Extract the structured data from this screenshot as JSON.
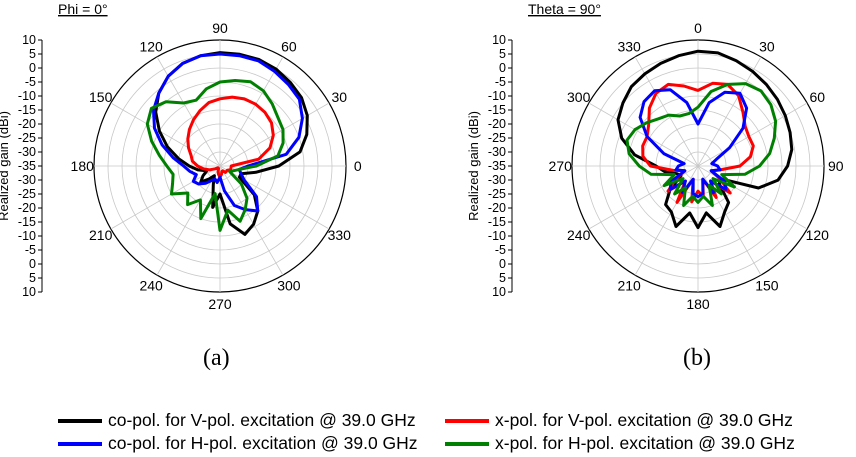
{
  "chart_data": [
    {
      "type": "polar",
      "panel_label": "Phi = 0°",
      "caption": "(a)",
      "ylabel": "Realized gain (dBi)",
      "rlim": [
        -35,
        10
      ],
      "radial_ticks": [
        10,
        5,
        0,
        -5,
        -10,
        -15,
        -20,
        -25,
        -30,
        -35
      ],
      "axis_labels": [
        "10",
        "5",
        "0",
        "-5",
        "-10",
        "-15",
        "-20",
        "-25",
        "-30",
        "-35",
        "-30",
        "-25",
        "-20",
        "-15",
        "-10",
        "-5",
        "0",
        "5",
        "10"
      ],
      "angle_ticks": [
        "0",
        "30",
        "60",
        "90",
        "120",
        "150",
        "180",
        "210",
        "240",
        "270",
        "300",
        "330"
      ],
      "angle_direction": "ccw",
      "zero_at": "right",
      "grid": true,
      "series": [
        {
          "key": "co_v",
          "name": "co-pol. for V-pol. excitation @ 39.0 GHz",
          "color": "#000000",
          "theta": [
            0,
            10,
            20,
            30,
            40,
            50,
            60,
            70,
            80,
            90,
            100,
            110,
            120,
            130,
            140,
            150,
            160,
            170,
            180,
            190,
            200,
            210,
            220,
            230,
            240,
            250,
            260,
            270,
            280,
            290,
            300,
            310,
            320,
            330,
            340,
            350
          ],
          "r": [
            -14,
            -6,
            -2,
            1,
            3,
            4,
            5,
            5.5,
            5.5,
            5.5,
            5,
            4,
            2,
            -1,
            -5,
            -10,
            -15,
            -20,
            -24,
            -27,
            -30,
            -28,
            -26,
            -29,
            -31,
            -28,
            -20,
            -25,
            -14,
            -9,
            -11,
            -14,
            -19,
            -27,
            -27,
            -22
          ]
        },
        {
          "key": "cross_v",
          "name": "x-pol. for V-pol. excitation @ 39.0 GHz",
          "color": "#ff0000",
          "theta": [
            0,
            10,
            20,
            30,
            40,
            50,
            60,
            70,
            80,
            90,
            100,
            110,
            120,
            130,
            140,
            150,
            160,
            170,
            180,
            190,
            200,
            210,
            220,
            230,
            240,
            250,
            260,
            270,
            280,
            290,
            300,
            310,
            320,
            330,
            340,
            350
          ],
          "r": [
            -31,
            -21,
            -16,
            -13,
            -11,
            -10,
            -9.5,
            -9.5,
            -10,
            -11,
            -12,
            -14,
            -16,
            -18,
            -20,
            -22,
            -24,
            -25,
            -27,
            -29,
            -31,
            -33,
            -34,
            -34,
            -34,
            -33,
            -32,
            -31,
            -32,
            -33,
            -33,
            -32,
            -32,
            -32,
            -31,
            -31
          ]
        },
        {
          "key": "co_h",
          "name": "co-pol. for H-pol. excitation @ 39.0 GHz",
          "color": "#0000ff",
          "theta": [
            0,
            10,
            20,
            30,
            40,
            50,
            60,
            70,
            80,
            90,
            100,
            110,
            120,
            130,
            140,
            150,
            160,
            170,
            180,
            190,
            200,
            210,
            220,
            230,
            240,
            250,
            260,
            270,
            280,
            290,
            300,
            310,
            320,
            330,
            340,
            350
          ],
          "r": [
            -25,
            -11,
            -5,
            -1,
            2,
            3,
            4,
            5,
            5,
            5,
            5,
            4,
            2,
            -1,
            -4,
            -8,
            -13,
            -18,
            -22,
            -24,
            -26,
            -24,
            -25,
            -27,
            -29,
            -30,
            -29,
            -31,
            -26,
            -20,
            -17,
            -14,
            -18,
            -25,
            -27,
            -28
          ]
        },
        {
          "key": "cross_h",
          "name": "x-pol. for H-pol. excitation @ 39.0 GHz",
          "color": "#008000",
          "theta": [
            0,
            10,
            20,
            30,
            40,
            50,
            60,
            70,
            80,
            90,
            100,
            110,
            120,
            130,
            140,
            150,
            160,
            170,
            180,
            190,
            200,
            210,
            220,
            230,
            240,
            250,
            260,
            270,
            280,
            290,
            300,
            310,
            320,
            330,
            340,
            350
          ],
          "r": [
            -22,
            -14,
            -11,
            -9,
            -8,
            -6,
            -4,
            -3,
            -4,
            -5,
            -7,
            -10,
            -9,
            -5,
            -3,
            -5,
            -9,
            -13,
            -16,
            -18,
            -17,
            -15,
            -20,
            -17,
            -21,
            -15,
            -25,
            -12,
            -19,
            -14,
            -17,
            -20,
            -25,
            -31,
            -30,
            -28
          ]
        }
      ]
    },
    {
      "type": "polar",
      "panel_label": "Theta = 90°",
      "caption": "(b)",
      "ylabel": "Realized gain (dBi)",
      "rlim": [
        -35,
        10
      ],
      "radial_ticks": [
        10,
        5,
        0,
        -5,
        -10,
        -15,
        -20,
        -25,
        -30,
        -35
      ],
      "axis_labels": [
        "10",
        "5",
        "0",
        "-5",
        "-10",
        "-15",
        "-20",
        "-25",
        "-30",
        "-35",
        "-30",
        "-25",
        "-20",
        "-15",
        "-10",
        "-5",
        "0",
        "5",
        "10"
      ],
      "angle_ticks": [
        "0",
        "30",
        "60",
        "90",
        "120",
        "150",
        "180",
        "210",
        "240",
        "270",
        "300",
        "330"
      ],
      "angle_direction": "cw",
      "zero_at": "top",
      "grid": true,
      "series": [
        {
          "key": "co_v",
          "name": "co-pol. for V-pol. excitation @ 39.0 GHz",
          "color": "#000000",
          "theta": [
            0,
            10,
            20,
            30,
            40,
            50,
            60,
            70,
            80,
            90,
            100,
            110,
            120,
            130,
            140,
            150,
            160,
            170,
            180,
            190,
            200,
            210,
            220,
            230,
            240,
            250,
            260,
            270,
            280,
            290,
            300,
            310,
            320,
            330,
            340,
            350
          ],
          "r": [
            6,
            6,
            5,
            4,
            3,
            2,
            1,
            0,
            -1,
            -3,
            -6,
            -12,
            -26,
            -25,
            -18,
            -16,
            -12,
            -18,
            -13,
            -18,
            -12,
            -16,
            -17,
            -22,
            -28,
            -27,
            -23,
            -20,
            -12,
            -6,
            -2,
            0,
            2,
            3,
            4,
            5
          ]
        },
        {
          "key": "cross_v",
          "name": "x-pol. for V-pol. excitation @ 39.0 GHz",
          "color": "#ff0000",
          "theta": [
            0,
            10,
            20,
            30,
            40,
            50,
            60,
            70,
            80,
            90,
            100,
            110,
            120,
            130,
            140,
            150,
            160,
            170,
            180,
            190,
            200,
            210,
            220,
            230,
            240,
            250,
            260,
            270,
            280,
            290,
            300,
            310,
            320,
            330,
            340,
            350
          ],
          "r": [
            -8,
            -5,
            -4,
            -6,
            -10,
            -13,
            -14,
            -14,
            -16,
            -20,
            -27,
            -30,
            -26,
            -20,
            -28,
            -22,
            -30,
            -24,
            -26,
            -22,
            -30,
            -20,
            -28,
            -21,
            -26,
            -30,
            -26,
            -18,
            -15,
            -14,
            -14,
            -12,
            -8,
            -5,
            -4,
            -6
          ]
        },
        {
          "key": "co_h",
          "name": "co-pol. for H-pol. excitation @ 39.0 GHz",
          "color": "#0000ff",
          "theta": [
            0,
            10,
            20,
            30,
            40,
            50,
            60,
            70,
            80,
            90,
            100,
            110,
            120,
            130,
            140,
            150,
            160,
            170,
            180,
            190,
            200,
            210,
            220,
            230,
            240,
            250,
            260,
            270,
            280,
            290,
            300,
            310,
            320,
            330,
            340,
            350
          ],
          "r": [
            -20,
            -12,
            -7,
            -5,
            -8,
            -14,
            -22,
            -28,
            -30,
            -28,
            -27,
            -30,
            -24,
            -22,
            -28,
            -24,
            -30,
            -25,
            -24,
            -25,
            -30,
            -24,
            -28,
            -22,
            -24,
            -30,
            -27,
            -28,
            -30,
            -22,
            -14,
            -8,
            -5,
            -4,
            -6,
            -12
          ]
        },
        {
          "key": "cross_h",
          "name": "x-pol. for H-pol. excitation @ 39.0 GHz",
          "color": "#008000",
          "theta": [
            0,
            10,
            20,
            30,
            40,
            50,
            60,
            70,
            80,
            90,
            100,
            110,
            120,
            130,
            140,
            150,
            160,
            170,
            180,
            190,
            200,
            210,
            220,
            230,
            240,
            250,
            260,
            270,
            280,
            290,
            300,
            310,
            320,
            330,
            340,
            350
          ],
          "r": [
            -14,
            -8,
            -4,
            -1,
            0,
            -1,
            -3,
            -6,
            -9,
            -13,
            -18,
            -26,
            -20,
            -28,
            -22,
            -27,
            -20,
            -24,
            -22,
            -24,
            -20,
            -26,
            -22,
            -28,
            -21,
            -26,
            -18,
            -14,
            -10,
            -8,
            -9,
            -11,
            -13,
            -14,
            -16,
            -16
          ]
        }
      ]
    }
  ],
  "legend": [
    {
      "key": "co_v",
      "label": "co-pol. for V-pol. excitation @ 39.0 GHz",
      "color": "#000000"
    },
    {
      "key": "cross_v",
      "label": "x-pol. for V-pol. excitation @ 39.0 GHz",
      "color": "#ff0000"
    },
    {
      "key": "co_h",
      "label": "co-pol. for H-pol. excitation @ 39.0 GHz",
      "color": "#0000ff"
    },
    {
      "key": "cross_h",
      "label": "x-pol. for H-pol. excitation @ 39.0 GHz",
      "color": "#008000"
    }
  ]
}
